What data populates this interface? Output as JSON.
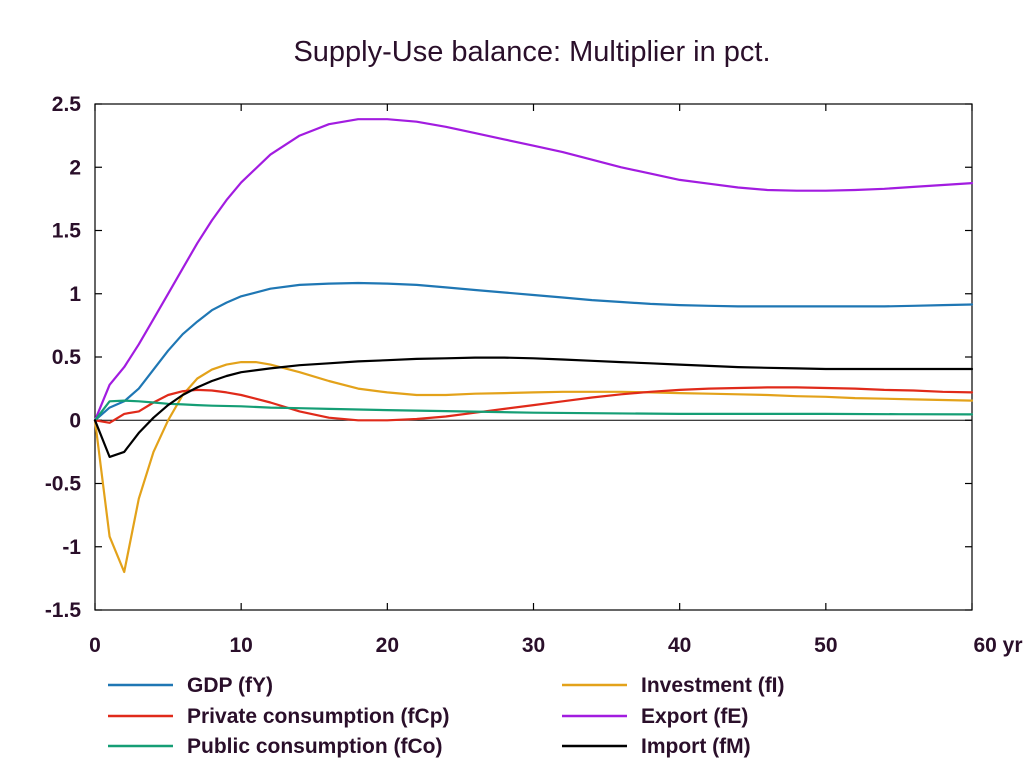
{
  "chart_data": {
    "type": "line",
    "title": "Supply-Use balance: Multiplier in pct.",
    "xlabel": "",
    "ylabel": "",
    "x_unit": "yr",
    "xlim": [
      0,
      60
    ],
    "ylim": [
      -1.5,
      2.5
    ],
    "x_ticks": [
      0,
      10,
      20,
      30,
      40,
      50,
      60
    ],
    "x_tick_labels": [
      "0",
      "10",
      "20",
      "30",
      "40",
      "50",
      "60 yr"
    ],
    "y_ticks": [
      2.5,
      2,
      1.5,
      1,
      0.5,
      0,
      -0.5,
      -1,
      -1.5
    ],
    "y_tick_labels": [
      "2.5",
      "2",
      "1.5",
      "1",
      "0.5",
      "0",
      "-0.5",
      "-1",
      "-1.5"
    ],
    "grid": false,
    "legend_position": "bottom",
    "series": [
      {
        "name": "GDP (fY)",
        "color": "#1f77b4",
        "x": [
          0,
          1,
          2,
          3,
          4,
          5,
          6,
          7,
          8,
          9,
          10,
          12,
          14,
          16,
          18,
          20,
          22,
          24,
          26,
          28,
          30,
          32,
          34,
          36,
          38,
          40,
          42,
          44,
          46,
          48,
          50,
          52,
          54,
          56,
          58,
          60
        ],
        "y": [
          0,
          0.1,
          0.15,
          0.25,
          0.4,
          0.55,
          0.68,
          0.78,
          0.87,
          0.93,
          0.98,
          1.04,
          1.07,
          1.08,
          1.085,
          1.08,
          1.07,
          1.05,
          1.03,
          1.01,
          0.99,
          0.97,
          0.95,
          0.935,
          0.92,
          0.91,
          0.905,
          0.9,
          0.9,
          0.9,
          0.9,
          0.9,
          0.9,
          0.905,
          0.91,
          0.915
        ]
      },
      {
        "name": "Investment (fI)",
        "color": "#e3a21a",
        "x": [
          0,
          1,
          2,
          3,
          4,
          5,
          6,
          7,
          8,
          9,
          10,
          11,
          12,
          14,
          16,
          18,
          20,
          22,
          24,
          26,
          28,
          30,
          32,
          34,
          36,
          38,
          40,
          42,
          44,
          46,
          48,
          50,
          52,
          54,
          56,
          58,
          60
        ],
        "y": [
          0,
          -0.92,
          -1.2,
          -0.62,
          -0.25,
          0.0,
          0.2,
          0.33,
          0.4,
          0.44,
          0.46,
          0.46,
          0.44,
          0.38,
          0.31,
          0.25,
          0.22,
          0.2,
          0.2,
          0.21,
          0.215,
          0.22,
          0.225,
          0.225,
          0.225,
          0.22,
          0.215,
          0.21,
          0.205,
          0.2,
          0.19,
          0.185,
          0.175,
          0.17,
          0.165,
          0.16,
          0.155
        ]
      },
      {
        "name": "Private consumption (fCp)",
        "color": "#e02a1a",
        "x": [
          0,
          1,
          2,
          3,
          4,
          5,
          6,
          7,
          8,
          9,
          10,
          12,
          14,
          16,
          18,
          20,
          22,
          24,
          26,
          28,
          30,
          32,
          34,
          36,
          38,
          40,
          42,
          44,
          46,
          48,
          50,
          52,
          54,
          56,
          58,
          60
        ],
        "y": [
          0,
          -0.02,
          0.05,
          0.07,
          0.14,
          0.2,
          0.23,
          0.24,
          0.235,
          0.22,
          0.2,
          0.14,
          0.07,
          0.02,
          0.0,
          0.0,
          0.01,
          0.03,
          0.06,
          0.09,
          0.12,
          0.15,
          0.18,
          0.205,
          0.225,
          0.24,
          0.25,
          0.255,
          0.26,
          0.26,
          0.255,
          0.25,
          0.24,
          0.235,
          0.225,
          0.22
        ]
      },
      {
        "name": "Export (fE)",
        "color": "#a21ce0",
        "x": [
          0,
          1,
          2,
          3,
          4,
          5,
          6,
          7,
          8,
          9,
          10,
          12,
          14,
          16,
          18,
          20,
          22,
          24,
          26,
          28,
          30,
          32,
          34,
          36,
          38,
          40,
          42,
          44,
          46,
          48,
          50,
          52,
          54,
          56,
          58,
          60
        ],
        "y": [
          0,
          0.28,
          0.42,
          0.6,
          0.8,
          1.0,
          1.2,
          1.4,
          1.58,
          1.74,
          1.88,
          2.1,
          2.25,
          2.34,
          2.38,
          2.38,
          2.36,
          2.32,
          2.27,
          2.22,
          2.17,
          2.12,
          2.06,
          2.0,
          1.95,
          1.9,
          1.87,
          1.84,
          1.82,
          1.815,
          1.815,
          1.82,
          1.83,
          1.845,
          1.86,
          1.875
        ]
      },
      {
        "name": "Public consumption (fCo)",
        "color": "#159e75",
        "x": [
          0,
          1,
          2,
          3,
          4,
          5,
          6,
          7,
          8,
          10,
          12,
          14,
          16,
          18,
          20,
          25,
          30,
          35,
          40,
          45,
          50,
          55,
          60
        ],
        "y": [
          0,
          0.15,
          0.155,
          0.15,
          0.14,
          0.13,
          0.125,
          0.12,
          0.115,
          0.11,
          0.1,
          0.095,
          0.09,
          0.085,
          0.08,
          0.07,
          0.06,
          0.055,
          0.05,
          0.05,
          0.05,
          0.048,
          0.046
        ]
      },
      {
        "name": "Import (fM)",
        "color": "#000000",
        "x": [
          0,
          1,
          2,
          3,
          4,
          5,
          6,
          7,
          8,
          9,
          10,
          12,
          14,
          16,
          18,
          20,
          22,
          24,
          26,
          28,
          30,
          32,
          34,
          36,
          38,
          40,
          42,
          44,
          46,
          48,
          50,
          52,
          54,
          56,
          58,
          60
        ],
        "y": [
          0,
          -0.29,
          -0.25,
          -0.1,
          0.02,
          0.12,
          0.2,
          0.26,
          0.31,
          0.35,
          0.38,
          0.41,
          0.435,
          0.45,
          0.465,
          0.475,
          0.485,
          0.49,
          0.495,
          0.495,
          0.49,
          0.48,
          0.47,
          0.46,
          0.45,
          0.44,
          0.43,
          0.42,
          0.415,
          0.41,
          0.405,
          0.405,
          0.405,
          0.405,
          0.405,
          0.405
        ]
      }
    ],
    "legend_order": [
      [
        "GDP (fY)",
        "Investment (fI)"
      ],
      [
        "Private consumption (fCp)",
        "Export (fE)"
      ],
      [
        "Public consumption (fCo)",
        "Import (fM)"
      ]
    ]
  }
}
